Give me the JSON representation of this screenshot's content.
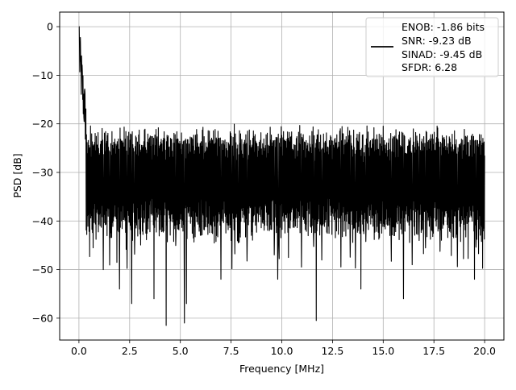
{
  "chart_data": {
    "type": "line",
    "title": "",
    "xlabel": "Frequency [MHz]",
    "ylabel": "PSD [dB]",
    "xlim": [
      -0.95,
      20.95
    ],
    "ylim": [
      -64.5,
      3.0
    ],
    "xticks": [
      0.0,
      2.5,
      5.0,
      7.5,
      10.0,
      12.5,
      15.0,
      17.5,
      20.0
    ],
    "xtick_labels": [
      "0.0",
      "2.5",
      "5.0",
      "7.5",
      "10.0",
      "12.5",
      "15.0",
      "17.5",
      "20.0"
    ],
    "yticks": [
      0,
      -10,
      -20,
      -30,
      -40,
      -50,
      -60
    ],
    "ytick_labels": [
      "0",
      "−10",
      "−20",
      "−30",
      "−40",
      "−50",
      "−60"
    ],
    "grid": true,
    "legend_position": "top-right",
    "legend_lines": [
      "ENOB: -1.86 bits",
      "SNR: -9.23 dB",
      "SINAD: -9.45 dB",
      "SFDR: 6.28"
    ],
    "series": [
      {
        "color": "#000000",
        "x_start": 0.0,
        "x_end": 20.0,
        "peak": {
          "x": 0.0,
          "y": 0.0
        },
        "noise_floor_mean": -30,
        "noise_upper": -22,
        "noise_lower": -42,
        "notable_minima": [
          {
            "x": 1.2,
            "y": -50
          },
          {
            "x": 2.0,
            "y": -54
          },
          {
            "x": 2.6,
            "y": -57
          },
          {
            "x": 3.7,
            "y": -56
          },
          {
            "x": 4.3,
            "y": -61.5
          },
          {
            "x": 5.2,
            "y": -61
          },
          {
            "x": 5.3,
            "y": -57
          },
          {
            "x": 7.0,
            "y": -52
          },
          {
            "x": 9.8,
            "y": -52
          },
          {
            "x": 11.7,
            "y": -60.5
          },
          {
            "x": 13.9,
            "y": -54
          },
          {
            "x": 16.0,
            "y": -56
          },
          {
            "x": 19.5,
            "y": -52
          }
        ]
      }
    ]
  }
}
